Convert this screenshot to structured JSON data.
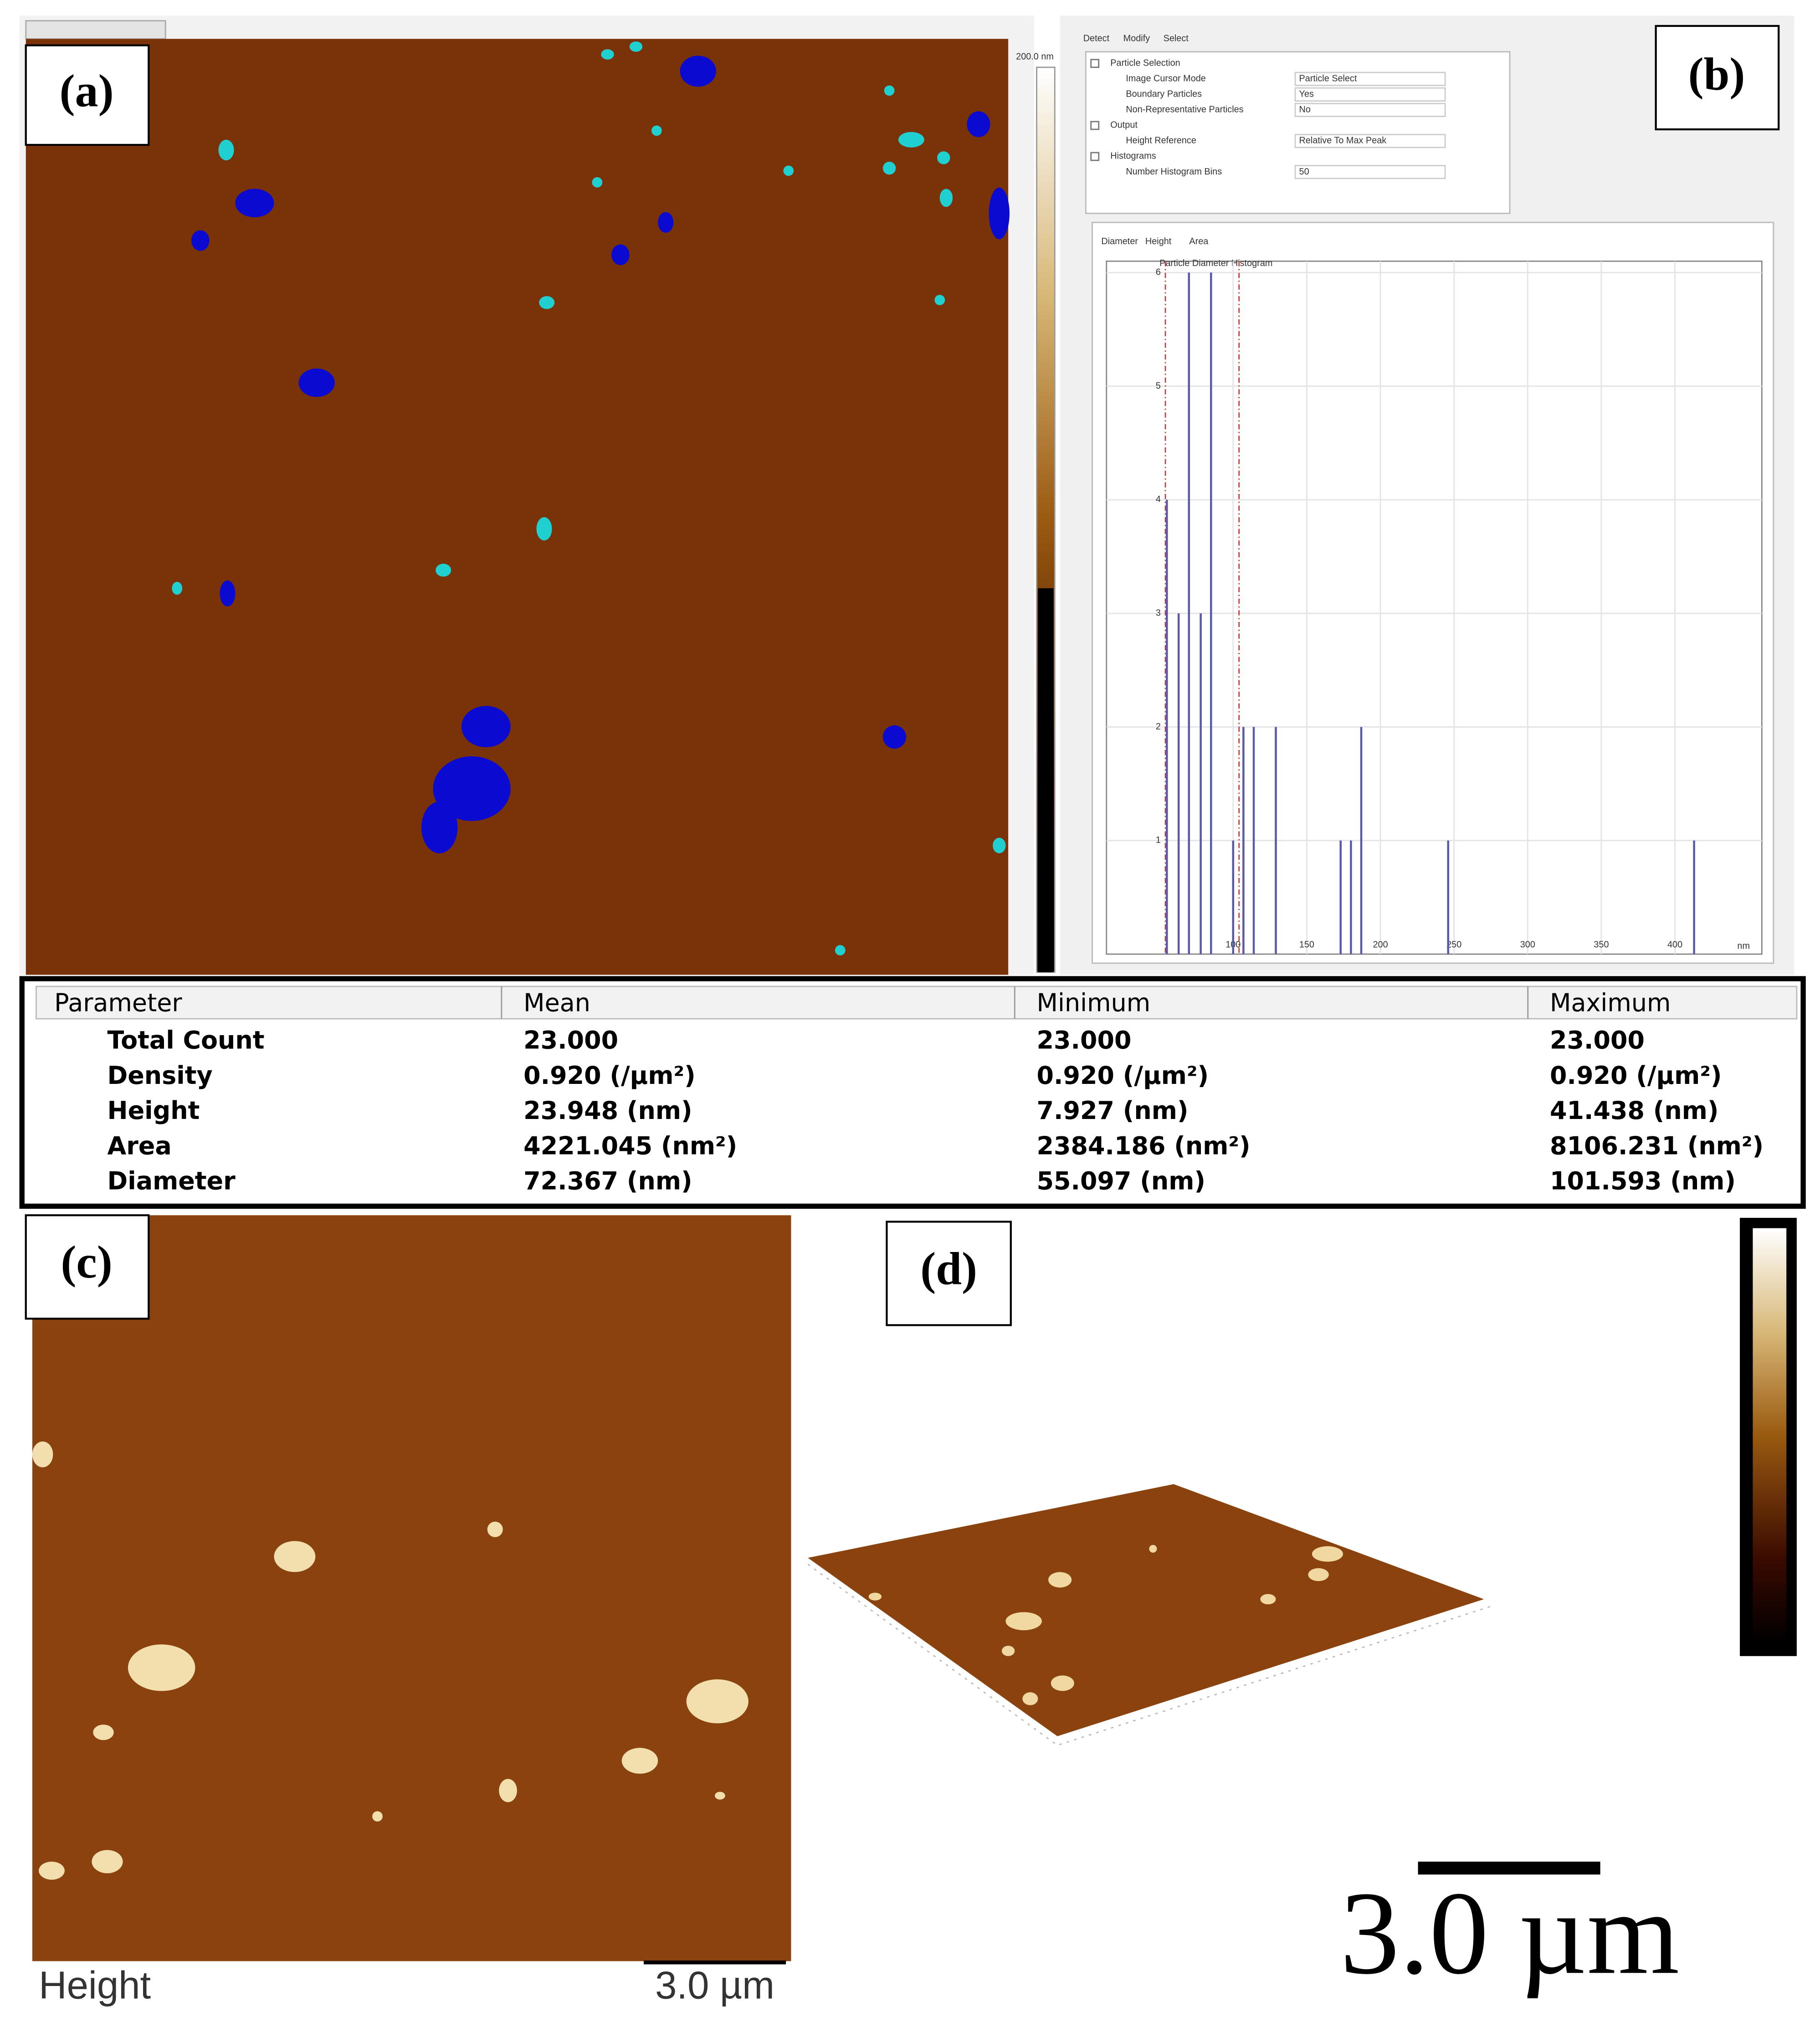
{
  "panel_a": {
    "label": "(a)",
    "colorbar_label": "200.0 nm"
  },
  "panel_b": {
    "label": "(b)",
    "tabs": [
      "Detect",
      "Modify",
      "Select"
    ],
    "properties": [
      {
        "name": "Particle Selection",
        "level": 0
      },
      {
        "name": "Image Cursor Mode",
        "value": "Particle Select",
        "level": 1
      },
      {
        "name": "Boundary Particles",
        "value": "Yes",
        "level": 1
      },
      {
        "name": "Non-Representative Particles",
        "value": "No",
        "level": 1
      },
      {
        "name": "Output",
        "level": 0
      },
      {
        "name": "Height Reference",
        "value": "Relative To Max Peak",
        "level": 1
      },
      {
        "name": "Histograms",
        "level": 0
      },
      {
        "name": "Number Histogram Bins",
        "value": "50",
        "level": 1
      }
    ],
    "histogram_tabs": [
      "Diameter",
      "Height",
      "Area"
    ],
    "histogram": {
      "type": "bar",
      "title": "Particle Diameter Histogram",
      "x_unit": "nm",
      "x": [
        55,
        63,
        70,
        78,
        85,
        100,
        107,
        114,
        129,
        173,
        180,
        187,
        246,
        413
      ],
      "values": [
        4,
        3,
        6,
        3,
        6,
        1,
        2,
        2,
        2,
        1,
        1,
        2,
        1,
        1
      ],
      "color": "#5a5aa8",
      "cursor_lines": [
        54,
        104
      ],
      "cursor_color": "#c04040",
      "xlim": [
        14,
        459
      ],
      "ylim": [
        0,
        6.1
      ],
      "xticks": [
        100,
        150,
        200,
        250,
        300,
        350,
        400
      ],
      "yticks": [
        1,
        2,
        3,
        4,
        5,
        6
      ],
      "grid": true
    }
  },
  "table": {
    "header": [
      "Parameter",
      "Mean",
      "Minimum",
      "Maximum"
    ],
    "rows": [
      [
        "Total Count",
        "23.000",
        "23.000",
        "23.000"
      ],
      [
        "Density",
        "0.920 (/µm²)",
        "0.920 (/µm²)",
        "0.920 (/µm²)"
      ],
      [
        "Height",
        "23.948 (nm)",
        "7.927 (nm)",
        "41.438 (nm)"
      ],
      [
        "Area",
        "4221.045 (nm²)",
        "2384.186 (nm²)",
        "8106.231 (nm²)"
      ],
      [
        "Diameter",
        "72.367 (nm)",
        "55.097 (nm)",
        "101.593 (nm)"
      ]
    ]
  },
  "panel_c": {
    "label": "(c)",
    "channel": "Height",
    "scale_bar": "3.0 µm"
  },
  "panel_d": {
    "label": "(d)",
    "scale_bar": "3.0 µm"
  }
}
